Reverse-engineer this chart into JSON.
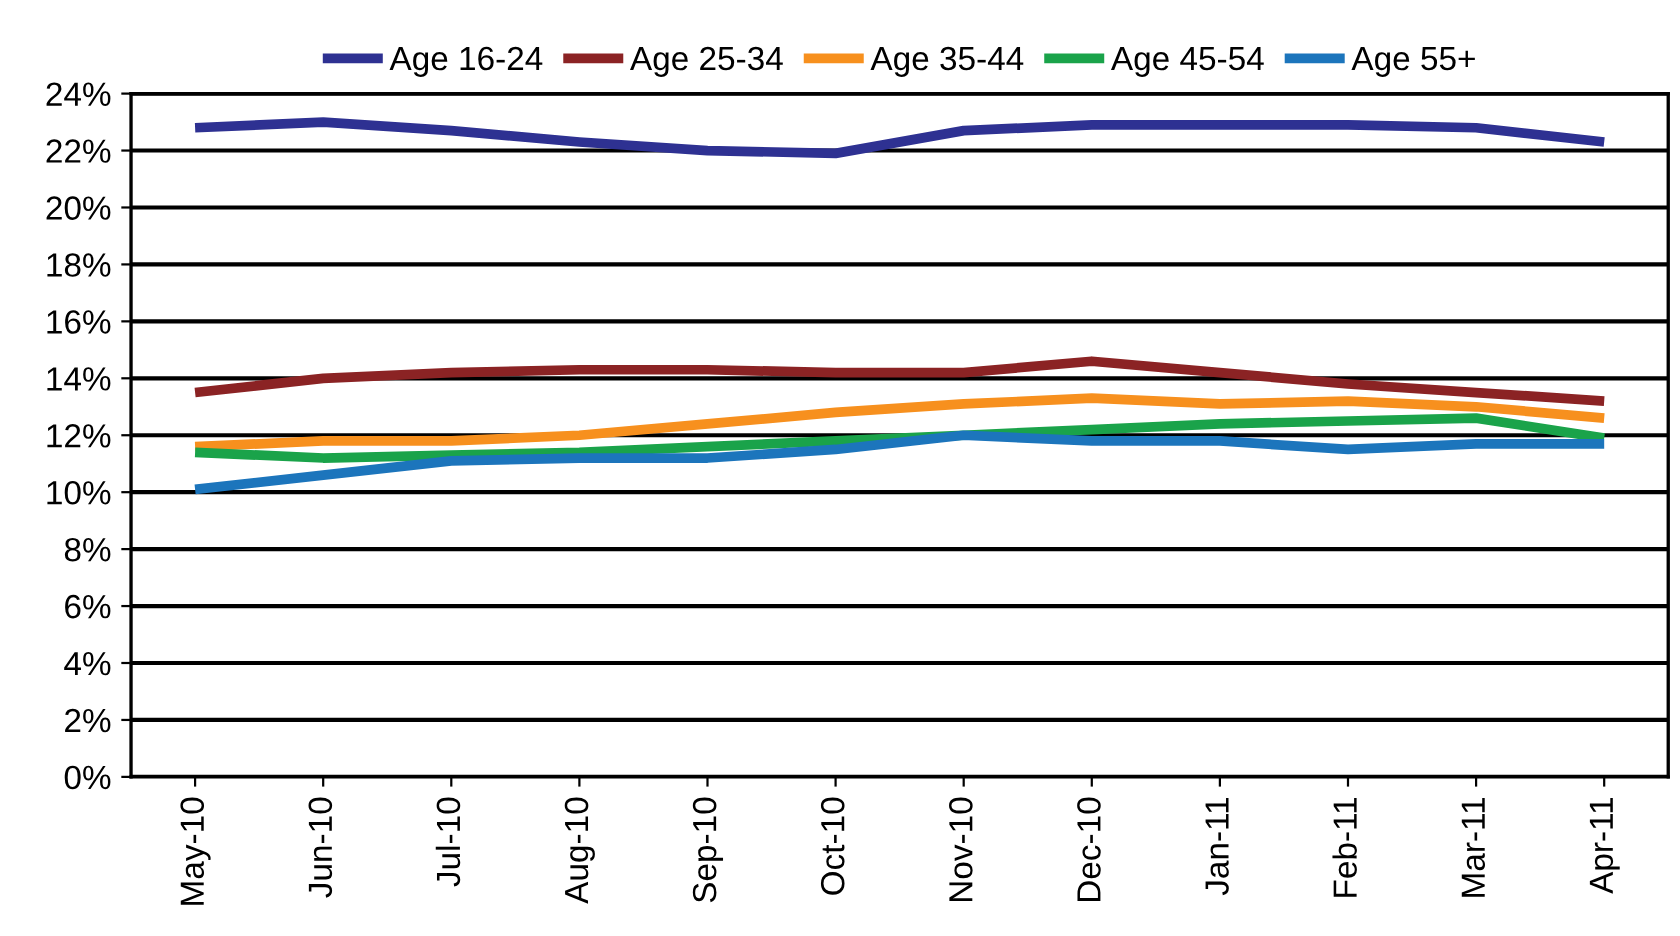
{
  "chart_data": {
    "type": "line",
    "categories": [
      "May-10",
      "Jun-10",
      "Jul-10",
      "Aug-10",
      "Sep-10",
      "Oct-10",
      "Nov-10",
      "Dec-10",
      "Jan-11",
      "Feb-11",
      "Mar-11",
      "Apr-11"
    ],
    "series": [
      {
        "name": "Age 16-24",
        "color": "#2e3192",
        "values": [
          22.8,
          23.0,
          22.7,
          22.3,
          22.0,
          21.9,
          22.7,
          22.9,
          22.9,
          22.9,
          22.8,
          22.3
        ]
      },
      {
        "name": "Age 25-34",
        "color": "#8b2324",
        "values": [
          13.5,
          14.0,
          14.2,
          14.3,
          14.3,
          14.2,
          14.2,
          14.6,
          14.2,
          13.8,
          13.5,
          13.2
        ]
      },
      {
        "name": "Age 35-44",
        "color": "#f7901e",
        "values": [
          11.6,
          11.8,
          11.8,
          12.0,
          12.4,
          12.8,
          13.1,
          13.3,
          13.1,
          13.2,
          13.0,
          12.6
        ]
      },
      {
        "name": "Age 45-54",
        "color": "#1aa34a",
        "values": [
          11.4,
          11.2,
          11.3,
          11.4,
          11.6,
          11.8,
          12.0,
          12.2,
          12.4,
          12.5,
          12.6,
          11.9
        ]
      },
      {
        "name": "Age 55+",
        "color": "#1c75bc",
        "values": [
          10.1,
          10.6,
          11.1,
          11.2,
          11.2,
          11.5,
          12.0,
          11.8,
          11.8,
          11.5,
          11.7,
          11.7
        ]
      }
    ],
    "ylim": [
      0,
      24
    ],
    "yticks": [
      {
        "value": 0,
        "label": "0%"
      },
      {
        "value": 2,
        "label": "2%"
      },
      {
        "value": 4,
        "label": "4%"
      },
      {
        "value": 6,
        "label": "6%"
      },
      {
        "value": 8,
        "label": "8%"
      },
      {
        "value": 10,
        "label": "10%"
      },
      {
        "value": 12,
        "label": "12%"
      },
      {
        "value": 14,
        "label": "14%"
      },
      {
        "value": 16,
        "label": "16%"
      },
      {
        "value": 18,
        "label": "18%"
      },
      {
        "value": 20,
        "label": "20%"
      },
      {
        "value": 22,
        "label": "22%"
      },
      {
        "value": 24,
        "label": "24%"
      }
    ],
    "grid": "y",
    "legend": "top",
    "marker": "none",
    "line_style": "solid"
  }
}
